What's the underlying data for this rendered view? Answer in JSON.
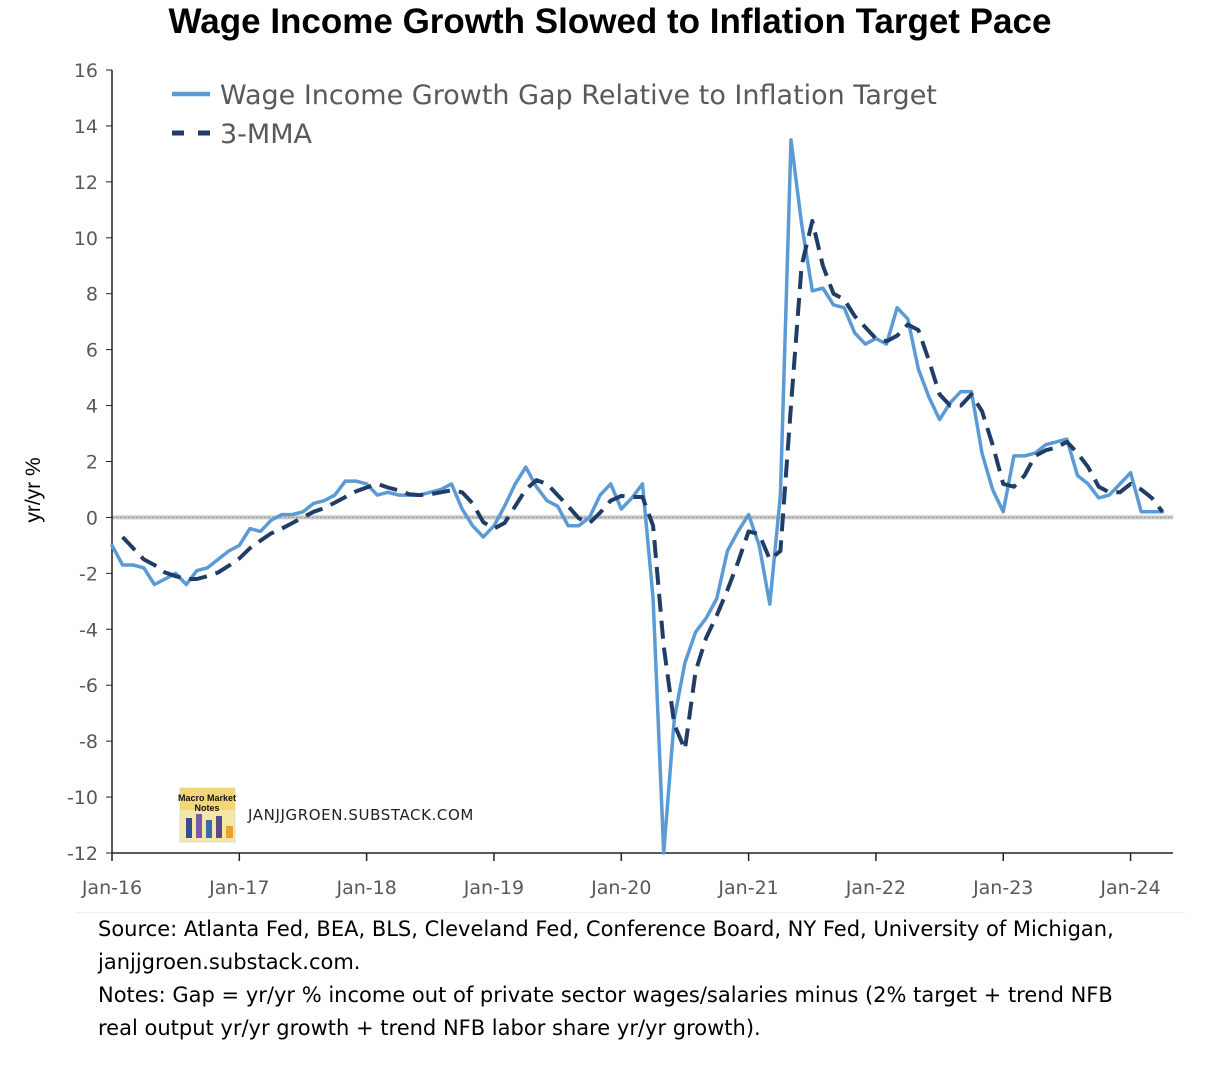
{
  "chart_data": {
    "type": "line",
    "title": "Wage Income Growth Slowed to Inflation Target Pace",
    "ylabel": "yr/yr %",
    "xlabel": "",
    "ylim": [
      -12,
      16
    ],
    "yticks": [
      16,
      14,
      12,
      10,
      8,
      6,
      4,
      2,
      0,
      -2,
      -4,
      -6,
      -8,
      -10,
      -12
    ],
    "xlim": [
      "2016-01",
      "2024-05"
    ],
    "xticks": [
      "Jan-16",
      "Jan-17",
      "Jan-18",
      "Jan-19",
      "Jan-20",
      "Jan-21",
      "Jan-22",
      "Jan-23",
      "Jan-24"
    ],
    "grid": false,
    "legend_position": "top-left",
    "reference_line": 0,
    "x": [
      "2016-01",
      "2016-02",
      "2016-03",
      "2016-04",
      "2016-05",
      "2016-06",
      "2016-07",
      "2016-08",
      "2016-09",
      "2016-10",
      "2016-11",
      "2016-12",
      "2017-01",
      "2017-02",
      "2017-03",
      "2017-04",
      "2017-05",
      "2017-06",
      "2017-07",
      "2017-08",
      "2017-09",
      "2017-10",
      "2017-11",
      "2017-12",
      "2018-01",
      "2018-02",
      "2018-03",
      "2018-04",
      "2018-05",
      "2018-06",
      "2018-07",
      "2018-08",
      "2018-09",
      "2018-10",
      "2018-11",
      "2018-12",
      "2019-01",
      "2019-02",
      "2019-03",
      "2019-04",
      "2019-05",
      "2019-06",
      "2019-07",
      "2019-08",
      "2019-09",
      "2019-10",
      "2019-11",
      "2019-12",
      "2020-01",
      "2020-02",
      "2020-03",
      "2020-04",
      "2020-05",
      "2020-06",
      "2020-07",
      "2020-08",
      "2020-09",
      "2020-10",
      "2020-11",
      "2020-12",
      "2021-01",
      "2021-02",
      "2021-03",
      "2021-04",
      "2021-05",
      "2021-06",
      "2021-07",
      "2021-08",
      "2021-09",
      "2021-10",
      "2021-11",
      "2021-12",
      "2022-01",
      "2022-02",
      "2022-03",
      "2022-04",
      "2022-05",
      "2022-06",
      "2022-07",
      "2022-08",
      "2022-09",
      "2022-10",
      "2022-11",
      "2022-12",
      "2023-01",
      "2023-02",
      "2023-03",
      "2023-04",
      "2023-05",
      "2023-06",
      "2023-07",
      "2023-08",
      "2023-09",
      "2023-10",
      "2023-11",
      "2023-12",
      "2024-01",
      "2024-02",
      "2024-03",
      "2024-04"
    ],
    "series": [
      {
        "name": "Wage Income Growth Gap Relative to Inflation Target",
        "color": "#5b9bd5",
        "style": "solid",
        "values": [
          -1.0,
          -1.7,
          -1.7,
          -1.8,
          -2.4,
          -2.2,
          -2.0,
          -2.4,
          -1.9,
          -1.8,
          -1.5,
          -1.2,
          -1.0,
          -0.4,
          -0.5,
          -0.1,
          0.1,
          0.1,
          0.2,
          0.5,
          0.6,
          0.8,
          1.3,
          1.3,
          1.2,
          0.8,
          0.9,
          0.8,
          0.8,
          0.8,
          0.9,
          1.0,
          1.2,
          0.3,
          -0.3,
          -0.7,
          -0.3,
          0.4,
          1.2,
          1.8,
          1.1,
          0.6,
          0.4,
          -0.3,
          -0.3,
          0.0,
          0.8,
          1.2,
          0.3,
          0.7,
          1.2,
          -2.9,
          -12.0,
          -7.2,
          -5.2,
          -4.1,
          -3.6,
          -2.9,
          -1.2,
          -0.5,
          0.1,
          -1.0,
          -3.1,
          0.8,
          13.5,
          10.5,
          8.1,
          8.2,
          7.6,
          7.5,
          6.6,
          6.2,
          6.4,
          6.2,
          7.5,
          7.1,
          5.3,
          4.3,
          3.5,
          4.1,
          4.5,
          4.5,
          2.3,
          1.0,
          0.2,
          2.2,
          2.2,
          2.3,
          2.6,
          2.7,
          2.8,
          1.5,
          1.2,
          0.7,
          0.8,
          1.2,
          1.6,
          0.2,
          0.2,
          0.2
        ]
      },
      {
        "name": "3-MMA",
        "color": "#1f3d66",
        "style": "dashed",
        "values": [
          null,
          -0.7,
          -1.1,
          -1.5,
          -1.7,
          -1.97,
          -2.1,
          -2.2,
          -2.2,
          -2.1,
          -1.97,
          -1.73,
          -1.47,
          -1.1,
          -0.83,
          -0.57,
          -0.4,
          -0.2,
          0.0,
          0.2,
          0.33,
          0.53,
          0.73,
          0.93,
          1.07,
          1.2,
          1.07,
          0.97,
          0.83,
          0.8,
          0.83,
          0.9,
          0.97,
          0.9,
          0.5,
          -0.17,
          -0.4,
          -0.2,
          0.4,
          1.0,
          1.33,
          1.2,
          0.8,
          0.4,
          -0.03,
          -0.2,
          0.17,
          0.6,
          0.77,
          0.73,
          0.73,
          -0.3,
          -4.6,
          -7.4,
          -8.3,
          -5.5,
          -4.3,
          -3.5,
          -2.6,
          -1.6,
          -0.5,
          -0.6,
          -1.5,
          -1.2,
          4.0,
          9.0,
          10.6,
          9.0,
          8.0,
          7.8,
          7.2,
          6.8,
          6.4,
          6.3,
          6.5,
          6.9,
          6.7,
          5.6,
          4.4,
          4.0,
          4.0,
          4.4,
          3.8,
          2.6,
          1.2,
          1.1,
          1.5,
          2.2,
          2.4,
          2.5,
          2.7,
          2.3,
          1.8,
          1.1,
          0.9,
          0.9,
          1.2,
          1.0,
          0.7,
          0.2
        ]
      }
    ]
  },
  "watermark": {
    "logo_line1": "Macro Market",
    "logo_line2": "Notes",
    "text": "JANJJGROEN.SUBSTACK.COM"
  },
  "notes": {
    "source_line1": "Source: Atlanta Fed, BEA, BLS, Cleveland Fed, Conference Board, NY Fed, University of Michigan,",
    "source_line2": "janjjgroen.substack.com.",
    "notes_line1": "Notes: Gap = yr/yr % income out of private sector wages/salaries minus (2% target + trend NFB",
    "notes_line2": "real output yr/yr growth + trend NFB labor share yr/yr growth)."
  }
}
